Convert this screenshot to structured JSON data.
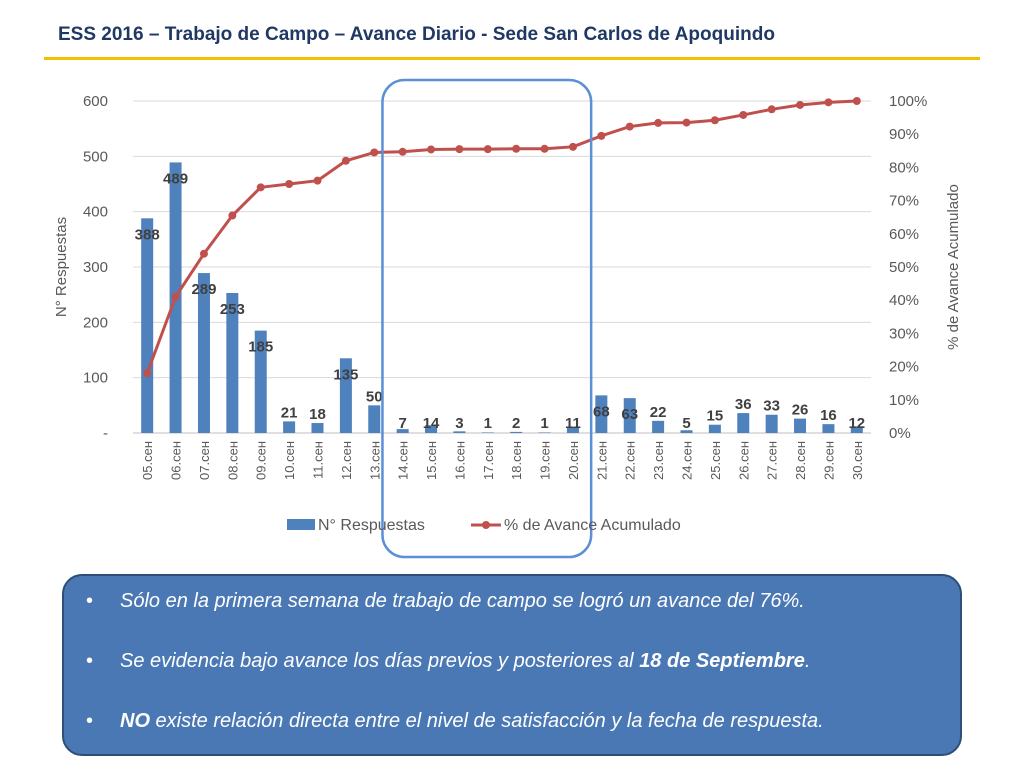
{
  "title": "ESS 2016 – Trabajo de Campo – Avance Diario - Sede San Carlos de Apoquindo",
  "colors": {
    "bar": "#4f81bd",
    "line": "#c0504d",
    "highlight": "#5b8fd6",
    "title": "#1f3864",
    "rule": "#f2c000",
    "notes_bg": "#4a78b4"
  },
  "chart_data": {
    "type": "bar+line",
    "categories": [
      "05.сен",
      "06.сен",
      "07.сен",
      "08.сен",
      "09.сен",
      "10.сен",
      "11.сен",
      "12.сен",
      "13.сен",
      "14.сен",
      "15.сен",
      "16.сен",
      "17.сен",
      "18.сен",
      "19.сен",
      "20.сен",
      "21.сен",
      "22.сен",
      "23.сен",
      "24.сен",
      "25.сен",
      "26.сен",
      "27.сен",
      "28.сен",
      "29.сен",
      "30.сен"
    ],
    "series": [
      {
        "name": "N° Respuestas",
        "type": "bar",
        "axis": "left",
        "values": [
          388,
          489,
          289,
          253,
          185,
          21,
          18,
          135,
          50,
          7,
          14,
          3,
          1,
          2,
          1,
          11,
          68,
          63,
          22,
          5,
          15,
          36,
          33,
          26,
          16,
          12
        ],
        "labels": [
          "388",
          "489",
          "289",
          "253",
          "185",
          "21",
          "18",
          "135",
          "50",
          "7",
          "14",
          "3",
          "1",
          "2",
          "1",
          "11",
          "68",
          "63",
          "22",
          "5",
          "15",
          "36",
          "33",
          "26",
          "16",
          "12"
        ]
      },
      {
        "name": "% de Avance Acumulado",
        "type": "line",
        "axis": "right",
        "values": [
          0.18,
          0.41,
          0.54,
          0.655,
          0.74,
          0.75,
          0.76,
          0.82,
          0.845,
          0.847,
          0.854,
          0.855,
          0.855,
          0.856,
          0.856,
          0.862,
          0.895,
          0.923,
          0.934,
          0.935,
          0.942,
          0.958,
          0.975,
          0.988,
          0.996,
          1.0
        ]
      }
    ],
    "y_left": {
      "label": "N° Respuestas",
      "range": [
        0,
        600
      ],
      "ticks": [
        "-",
        "100",
        "200",
        "300",
        "400",
        "500",
        "600"
      ]
    },
    "y_right": {
      "label": "% de Avance Acumulado",
      "range": [
        0,
        1
      ],
      "ticks": [
        "0%",
        "10%",
        "20%",
        "30%",
        "40%",
        "50%",
        "60%",
        "70%",
        "80%",
        "90%",
        "100%"
      ]
    },
    "grid": true,
    "legend": "bottom",
    "highlight_range": [
      "14.сен",
      "20.сен"
    ]
  },
  "notes": [
    {
      "pre": "Sólo en la primera semana de trabajo de campo se logró un avance del 76%.",
      "bold": "",
      "post": ""
    },
    {
      "pre": "Se evidencia bajo avance los días previos y posteriores al ",
      "bold": "18 de Septiembre",
      "post": "."
    },
    {
      "pre": "",
      "bold": "NO",
      "post": " existe relación directa entre el nivel de satisfacción y la fecha de respuesta."
    }
  ],
  "bullet": "•"
}
